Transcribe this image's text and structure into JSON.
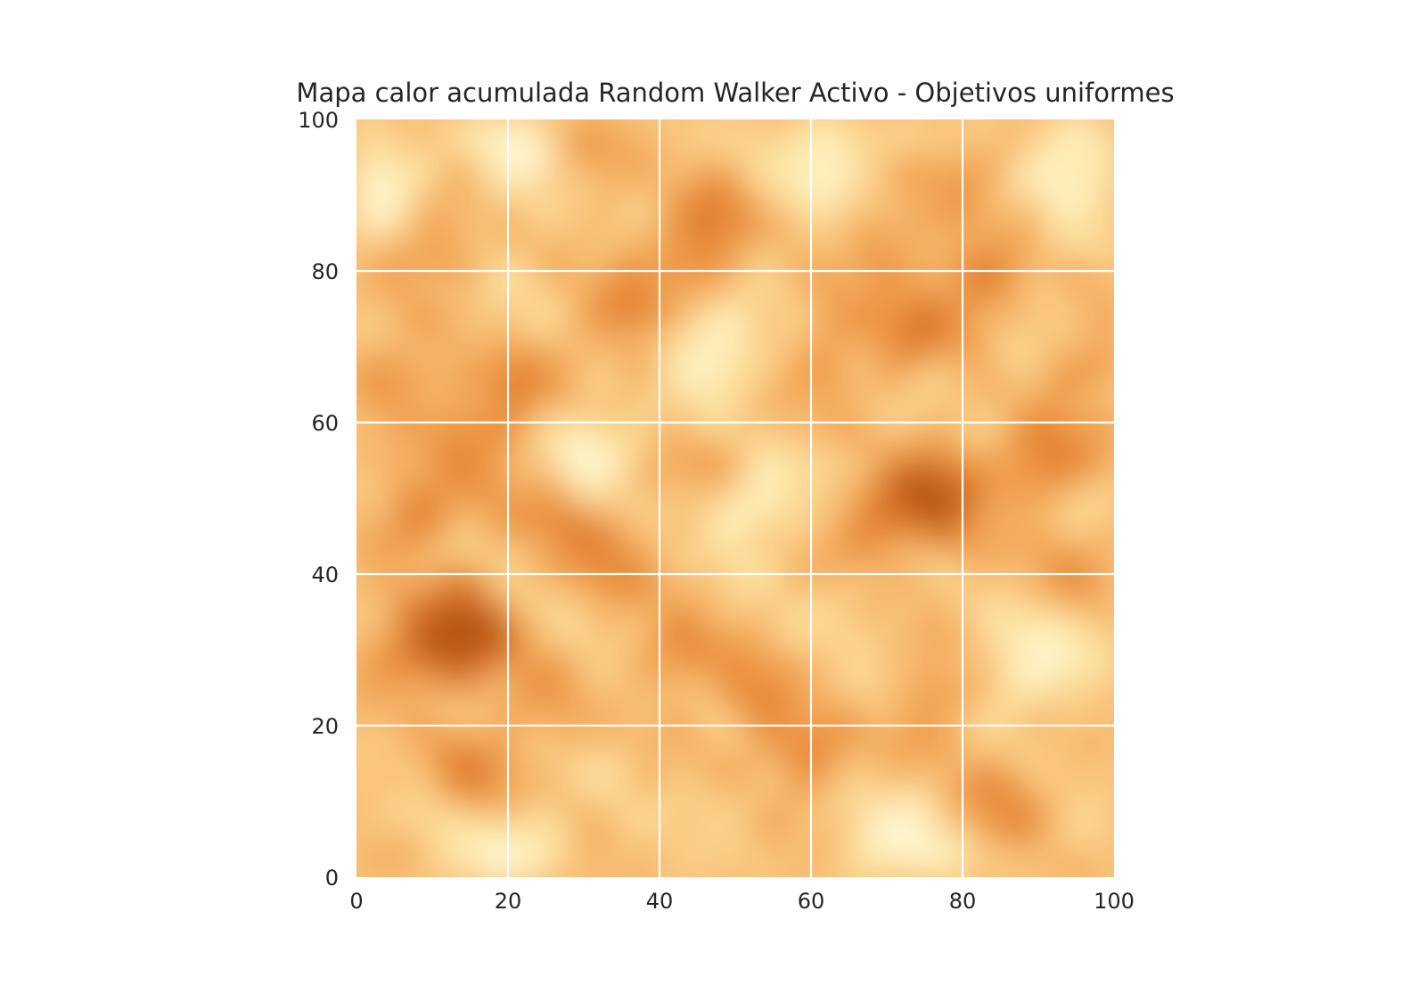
{
  "chart_data": {
    "type": "heatmap",
    "title": "Mapa calor acumulada Random Walker Activo - Objetivos uniformes",
    "xlabel": "",
    "ylabel": "",
    "xlim": [
      0,
      100
    ],
    "ylim": [
      0,
      100
    ],
    "x_ticks": [
      "0",
      "20",
      "40",
      "60",
      "80",
      "100"
    ],
    "y_ticks": [
      "0",
      "20",
      "40",
      "60",
      "80",
      "100"
    ],
    "grid": true,
    "grid_color": "#ffffff",
    "colormap": "YlOrBr",
    "colormap_stops": [
      "#fff8d6",
      "#fde7a3",
      "#f9c27a",
      "#ef9a46",
      "#dc7424",
      "#b75512"
    ],
    "hotspots": [
      {
        "x": 15,
        "y": 33,
        "intensity": 1.0
      },
      {
        "x": 12,
        "y": 31,
        "intensity": 0.85
      },
      {
        "x": 8,
        "y": 48,
        "intensity": 0.7
      },
      {
        "x": 16,
        "y": 58,
        "intensity": 0.65
      },
      {
        "x": 26,
        "y": 49,
        "intensity": 0.65
      },
      {
        "x": 33,
        "y": 43,
        "intensity": 0.6
      },
      {
        "x": 10,
        "y": 84,
        "intensity": 0.6
      },
      {
        "x": 44,
        "y": 81,
        "intensity": 0.7
      },
      {
        "x": 48,
        "y": 89,
        "intensity": 0.6
      },
      {
        "x": 36,
        "y": 74,
        "intensity": 0.55
      },
      {
        "x": 75,
        "y": 52,
        "intensity": 0.8
      },
      {
        "x": 78,
        "y": 48,
        "intensity": 0.75
      },
      {
        "x": 68,
        "y": 47,
        "intensity": 0.6
      },
      {
        "x": 91,
        "y": 55,
        "intensity": 0.75
      },
      {
        "x": 82,
        "y": 78,
        "intensity": 0.65
      },
      {
        "x": 73,
        "y": 73,
        "intensity": 0.6
      },
      {
        "x": 16,
        "y": 14,
        "intensity": 0.6
      },
      {
        "x": 59,
        "y": 16,
        "intensity": 0.6
      },
      {
        "x": 53,
        "y": 24,
        "intensity": 0.55
      },
      {
        "x": 76,
        "y": 24,
        "intensity": 0.55
      },
      {
        "x": 85,
        "y": 10,
        "intensity": 0.55
      },
      {
        "x": 5,
        "y": 65,
        "intensity": 0.55
      },
      {
        "x": 22,
        "y": 65,
        "intensity": 0.5
      },
      {
        "x": 62,
        "y": 70,
        "intensity": 0.5
      },
      {
        "x": 70,
        "y": 83,
        "intensity": 0.5
      },
      {
        "x": 80,
        "y": 92,
        "intensity": 0.5
      },
      {
        "x": 30,
        "y": 95,
        "intensity": 0.45
      },
      {
        "x": 48,
        "y": 55,
        "intensity": 0.5
      },
      {
        "x": 25,
        "y": 23,
        "intensity": 0.5
      },
      {
        "x": 42,
        "y": 30,
        "intensity": 0.5
      },
      {
        "x": 95,
        "y": 40,
        "intensity": 0.45
      },
      {
        "x": 97,
        "y": 67,
        "intensity": 0.45
      },
      {
        "x": 5,
        "y": 30,
        "intensity": 0.45
      }
    ],
    "coldspots": [
      {
        "x": 95,
        "y": 95
      },
      {
        "x": 90,
        "y": 28
      },
      {
        "x": 47,
        "y": 70
      },
      {
        "x": 30,
        "y": 55
      },
      {
        "x": 22,
        "y": 96
      },
      {
        "x": 62,
        "y": 95
      },
      {
        "x": 20,
        "y": 3
      },
      {
        "x": 72,
        "y": 5
      },
      {
        "x": 3,
        "y": 92
      },
      {
        "x": 53,
        "y": 50
      }
    ]
  }
}
